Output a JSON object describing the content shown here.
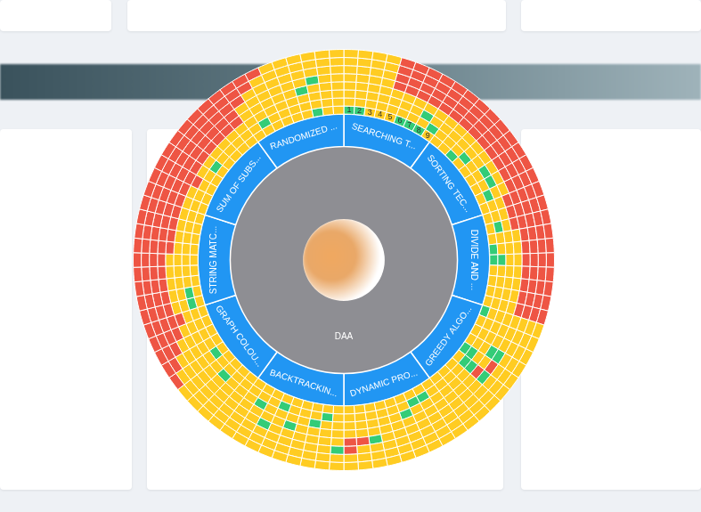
{
  "chart_data": {
    "type": "sunburst",
    "center": {
      "label": "DAA",
      "color": "#8e8e93"
    },
    "categories": [
      "SEARCHING T...",
      "SORTING TEC...",
      "DIVIDE AND ...",
      "GREEDY ALGO...",
      "DYNAMIC PRO...",
      "BACKTRACKIN...",
      "GRAPH COLOU...",
      "STRING MATC...",
      "SUM OF SUBS...",
      "RANDOMIZED ..."
    ],
    "color": "#2196f3",
    "cell_labels": [
      1,
      2,
      3,
      4,
      5,
      6,
      7,
      8,
      9
    ],
    "series": [
      {
        "colors": [
          "#3c7",
          "#3c7",
          "#fc2",
          "#fc2",
          "#fc2",
          "#3c7",
          "#3c7",
          "#3c7",
          "#fc2",
          "#fc2",
          "#fc2",
          "#3c7",
          "#fc2",
          "#fc2",
          "#fc2",
          "#fc2",
          "#fc2",
          "#fc2",
          "#fc2",
          "#fc2",
          "#fc2",
          "#3c7",
          "#3c7",
          "#fc2",
          "#fc2",
          "#fc2",
          "#fc2",
          "#3c7",
          "#fc2",
          "#fc2",
          "#fc2",
          "#3c7",
          "#fc2",
          "#fc2",
          "#fc2",
          "#fc2",
          "#fc2",
          "#fc2",
          "#fc2",
          "#fc2",
          "#fc2",
          "#fc2",
          "#fc2",
          "#fc2",
          "#fc2",
          "#fc2",
          "#fc2",
          "#fc2",
          "#fc2",
          "#fc2",
          "#fc2",
          "#fc2",
          "#fc2",
          "#fc2",
          "#fc2",
          "#fc2",
          "#fc2",
          "#fc2",
          "#fc2",
          "#fc2",
          "#fc2",
          "#fc2",
          "#fc2",
          "#fc2",
          "#fc2",
          "#fc2",
          "#fc2",
          "#fc2",
          "#fc2",
          "#fc2",
          "#fc2",
          "#fc2",
          "#fc2",
          "#fc2",
          "#fc2",
          "#fc2",
          "#fc2",
          "#fc2",
          "#fc2",
          "#fc2",
          "#fc2",
          "#fc2",
          "#fc2",
          "#fc2",
          "#fc2",
          "#fc2",
          "#fc2",
          "#3c7",
          "#fc2",
          "#fc2"
        ]
      },
      {
        "colors": [
          "#fc2",
          "#fc2",
          "#fc2",
          "#fc2",
          "#fc2",
          "#fc2",
          "#fc2",
          "#fc2",
          "#3c7",
          "#fc2",
          "#fc2",
          "#fc2",
          "#3c7",
          "#fc2",
          "#fc2",
          "#fc2",
          "#3c7",
          "#fc2",
          "#fc2",
          "#3c7",
          "#fc2",
          "#fc2",
          "#3c7",
          "#fc2",
          "#fc2",
          "#fc2",
          "#fc2",
          "#fc2",
          "#fc2",
          "#fc2",
          "#fc2",
          "#3c7",
          "#3c7",
          "#fc2",
          "#fc2",
          "#fc2",
          "#fc2",
          "#3c7",
          "#3c7",
          "#fc2",
          "#fc2",
          "#fc2",
          "#fc2",
          "#fc2",
          "#fc2",
          "#fc2",
          "#3c7",
          "#fc2",
          "#fc2",
          "#fc2",
          "#3c7",
          "#fc2",
          "#fc2",
          "#fc2",
          "#fc2",
          "#fc2",
          "#fc2",
          "#fc2",
          "#3c7",
          "#fc2",
          "#fc2",
          "#fc2",
          "#fc2",
          "#3c7",
          "#3c7",
          "#fc2",
          "#fc2",
          "#fc2",
          "#fc2",
          "#fc2",
          "#fc2",
          "#fc2",
          "#fc2",
          "#fc2",
          "#fc2",
          "#fc2",
          "#3c7",
          "#fc2",
          "#fc2",
          "#fc2",
          "#fc2",
          "#fc2",
          "#3c7",
          "#fc2",
          "#fc2",
          "#fc2",
          "#fc2",
          "#fc2",
          "#fc2",
          "#fc2"
        ]
      },
      {
        "colors": [
          "#fc2",
          "#fc2",
          "#fc2",
          "#fc2",
          "#fc2",
          "#fc2",
          "#fc2",
          "#3c7",
          "#fc2",
          "#fc2",
          "#fc2",
          "#fc2",
          "#fc2",
          "#fc2",
          "#3c7",
          "#3c7",
          "#fc2",
          "#fc2",
          "#fc2",
          "#fc2",
          "#fc2",
          "#fc2",
          "#fc2",
          "#fc2",
          "#fc2",
          "#fc2",
          "#fc2",
          "#fc2",
          "#fc2",
          "#fc2",
          "#fc2",
          "#fc2",
          "#3c7",
          "#fc2",
          "#fc2",
          "#fc2",
          "#fc2",
          "#fc2",
          "#fc2",
          "#3c7",
          "#fc2",
          "#fc2",
          "#fc2",
          "#fc2",
          "#fc2",
          "#fc2",
          "#fc2",
          "#3c7",
          "#fc2",
          "#fc2",
          "#fc2",
          "#fc2",
          "#3c7",
          "#fc2",
          "#fc2",
          "#fc2",
          "#3c7",
          "#fc2",
          "#fc2",
          "#fc2",
          "#fc2",
          "#fc2",
          "#fc2",
          "#fc2",
          "#fc2",
          "#fc2",
          "#fc2",
          "#fc2",
          "#fc2",
          "#fc2",
          "#fc2",
          "#fc2",
          "#fc2",
          "#fc2",
          "#e54",
          "#fc2",
          "#fc2",
          "#fc2",
          "#fc2",
          "#fc2",
          "#fc2",
          "#fc2",
          "#fc2",
          "#fc2",
          "#fc2",
          "#fc2",
          "#fc2",
          "#fc2",
          "#fc2",
          "#fc2"
        ]
      },
      {
        "colors": [
          "#fc2",
          "#fc2",
          "#fc2",
          "#fc2",
          "#fc2",
          "#fc2",
          "#fc2",
          "#fc2",
          "#fc2",
          "#fc2",
          "#fc2",
          "#fc2",
          "#fc2",
          "#fc2",
          "#fc2",
          "#fc2",
          "#fc2",
          "#e54",
          "#e54",
          "#e54",
          "#fc2",
          "#fc2",
          "#fc2",
          "#fc2",
          "#fc2",
          "#fc2",
          "#fc2",
          "#fc2",
          "#fc2",
          "#fc2",
          "#3c7",
          "#fc2",
          "#e54",
          "#fc2",
          "#fc2",
          "#fc2",
          "#fc2",
          "#fc2",
          "#fc2",
          "#fc2",
          "#fc2",
          "#fc2",
          "#fc2",
          "#fc2",
          "#fc2",
          "#fc2",
          "#fc2",
          "#fc2",
          "#fc2",
          "#3c7",
          "#fc2",
          "#fc2",
          "#fc2",
          "#fc2",
          "#fc2",
          "#fc2",
          "#fc2",
          "#fc2",
          "#fc2",
          "#fc2",
          "#fc2",
          "#fc2",
          "#e54",
          "#fc2",
          "#fc2",
          "#fc2",
          "#fc2",
          "#fc2",
          "#e54",
          "#e54",
          "#e54",
          "#e54",
          "#e54",
          "#e54",
          "#e54",
          "#e54",
          "#e54",
          "#e54",
          "#e54",
          "#e54",
          "#e54",
          "#fc2",
          "#fc2",
          "#fc2",
          "#fc2",
          "#fc2",
          "#3c7",
          "#fc2",
          "#fc2",
          "#fc2"
        ]
      },
      {
        "colors": [
          "#fc2",
          "#fc2",
          "#fc2",
          "#fc2",
          "#e54",
          "#e54",
          "#e54",
          "#e54",
          "#e54",
          "#e54",
          "#e54",
          "#e54",
          "#e54",
          "#e54",
          "#e54",
          "#e54",
          "#e54",
          "#e54",
          "#e54",
          "#e54",
          "#e54",
          "#e54",
          "#e54",
          "#e54",
          "#e54",
          "#e54",
          "#e54",
          "#fc2",
          "#fc2",
          "#fc2",
          "#3c7",
          "#e54",
          "#3c7",
          "#fc2",
          "#fc2",
          "#fc2",
          "#fc2",
          "#fc2",
          "#fc2",
          "#fc2",
          "#fc2",
          "#fc2",
          "#3c7",
          "#e54",
          "#e54",
          "#fc2",
          "#fc2",
          "#fc2",
          "#fc2",
          "#fc2",
          "#fc2",
          "#3c7",
          "#fc2",
          "#fc2",
          "#fc2",
          "#fc2",
          "#fc2",
          "#fc2",
          "#fc2",
          "#fc2",
          "#fc2",
          "#e54",
          "#e54",
          "#e54",
          "#e54",
          "#e54",
          "#e54",
          "#e54",
          "#e54",
          "#e54",
          "#e54",
          "#e54",
          "#e54",
          "#e54",
          "#e54",
          "#e54",
          "#e54",
          "#e54",
          "#e54",
          "#e54",
          "#e54",
          "#fc2",
          "#fc2",
          "#fc2",
          "#fc2",
          "#fc2",
          "#fc2",
          "#3c7",
          "#fc2",
          "#fc2"
        ]
      },
      {
        "colors": [
          "#fc2",
          "#fc2",
          "#fc2",
          "#fc2",
          "#e54",
          "#e54",
          "#e54",
          "#e54",
          "#e54",
          "#e54",
          "#e54",
          "#e54",
          "#e54",
          "#e54",
          "#e54",
          "#e54",
          "#e54",
          "#e54",
          "#e54",
          "#e54",
          "#e54",
          "#e54",
          "#e54",
          "#e54",
          "#e54",
          "#e54",
          "#e54",
          "#fc2",
          "#fc2",
          "#fc2",
          "#fc2",
          "#fc2",
          "#fc2",
          "#fc2",
          "#fc2",
          "#fc2",
          "#fc2",
          "#fc2",
          "#fc2",
          "#fc2",
          "#fc2",
          "#fc2",
          "#fc2",
          "#fc2",
          "#e54",
          "#3c7",
          "#fc2",
          "#fc2",
          "#fc2",
          "#fc2",
          "#fc2",
          "#fc2",
          "#fc2",
          "#fc2",
          "#fc2",
          "#fc2",
          "#fc2",
          "#fc2",
          "#fc2",
          "#fc2",
          "#e54",
          "#e54",
          "#e54",
          "#e54",
          "#e54",
          "#e54",
          "#e54",
          "#e54",
          "#e54",
          "#e54",
          "#e54",
          "#e54",
          "#e54",
          "#e54",
          "#e54",
          "#e54",
          "#e54",
          "#e54",
          "#e54",
          "#e54",
          "#e54",
          "#e54",
          "#fc2",
          "#fc2",
          "#fc2",
          "#fc2",
          "#fc2",
          "#fc2",
          "#fc2",
          "#fc2"
        ]
      },
      {
        "colors": [
          "#fc2",
          "#fc2",
          "#fc2",
          "#fc2",
          "#e54",
          "#e54",
          "#e54",
          "#e54",
          "#e54",
          "#e54",
          "#e54",
          "#e54",
          "#e54",
          "#e54",
          "#e54",
          "#e54",
          "#e54",
          "#e54",
          "#e54",
          "#e54",
          "#e54",
          "#e54",
          "#e54",
          "#e54",
          "#e54",
          "#e54",
          "#e54",
          "#fc2",
          "#fc2",
          "#fc2",
          "#fc2",
          "#fc2",
          "#fc2",
          "#fc2",
          "#fc2",
          "#fc2",
          "#fc2",
          "#fc2",
          "#fc2",
          "#fc2",
          "#fc2",
          "#fc2",
          "#fc2",
          "#fc2",
          "#fc2",
          "#fc2",
          "#fc2",
          "#fc2",
          "#fc2",
          "#fc2",
          "#fc2",
          "#fc2",
          "#fc2",
          "#fc2",
          "#fc2",
          "#fc2",
          "#fc2",
          "#fc2",
          "#fc2",
          "#e54",
          "#e54",
          "#e54",
          "#e54",
          "#e54",
          "#e54",
          "#e54",
          "#e54",
          "#e54",
          "#e54",
          "#e54",
          "#e54",
          "#e54",
          "#e54",
          "#e54",
          "#e54",
          "#e54",
          "#e54",
          "#e54",
          "#e54",
          "#e54",
          "#e54",
          "#e54",
          "#e54",
          "#fc2",
          "#fc2",
          "#fc2",
          "#fc2",
          "#fc2",
          "#fc2",
          "#fc2"
        ]
      },
      {
        "colors": [
          "#fc2",
          "#fc2",
          "#fc2",
          "#fc2",
          "#e54",
          "#e54",
          "#e54",
          "#e54",
          "#e54",
          "#e54",
          "#e54",
          "#e54",
          "#e54",
          "#e54",
          "#e54",
          "#e54",
          "#e54",
          "#e54",
          "#e54",
          "#e54",
          "#e54",
          "#e54",
          "#e54",
          "#e54",
          "#e54",
          "#e54",
          "#e54",
          "#fc2",
          "#fc2",
          "#fc2",
          "#fc2",
          "#fc2",
          "#fc2",
          "#fc2",
          "#fc2",
          "#fc2",
          "#fc2",
          "#fc2",
          "#fc2",
          "#fc2",
          "#fc2",
          "#fc2",
          "#fc2",
          "#fc2",
          "#fc2",
          "#fc2",
          "#fc2",
          "#fc2",
          "#fc2",
          "#fc2",
          "#fc2",
          "#fc2",
          "#fc2",
          "#fc2",
          "#fc2",
          "#fc2",
          "#fc2",
          "#fc2",
          "#e54",
          "#e54",
          "#e54",
          "#e54",
          "#e54",
          "#e54",
          "#e54",
          "#e54",
          "#e54",
          "#e54",
          "#e54",
          "#e54",
          "#e54",
          "#e54",
          "#e54",
          "#e54",
          "#e54",
          "#e54",
          "#e54",
          "#e54",
          "#e54",
          "#e54",
          "#e54",
          "#e54",
          "#e54",
          "#e54",
          "#fc2",
          "#fc2",
          "#fc2",
          "#fc2",
          "#fc2",
          "#fc2"
        ]
      }
    ]
  }
}
